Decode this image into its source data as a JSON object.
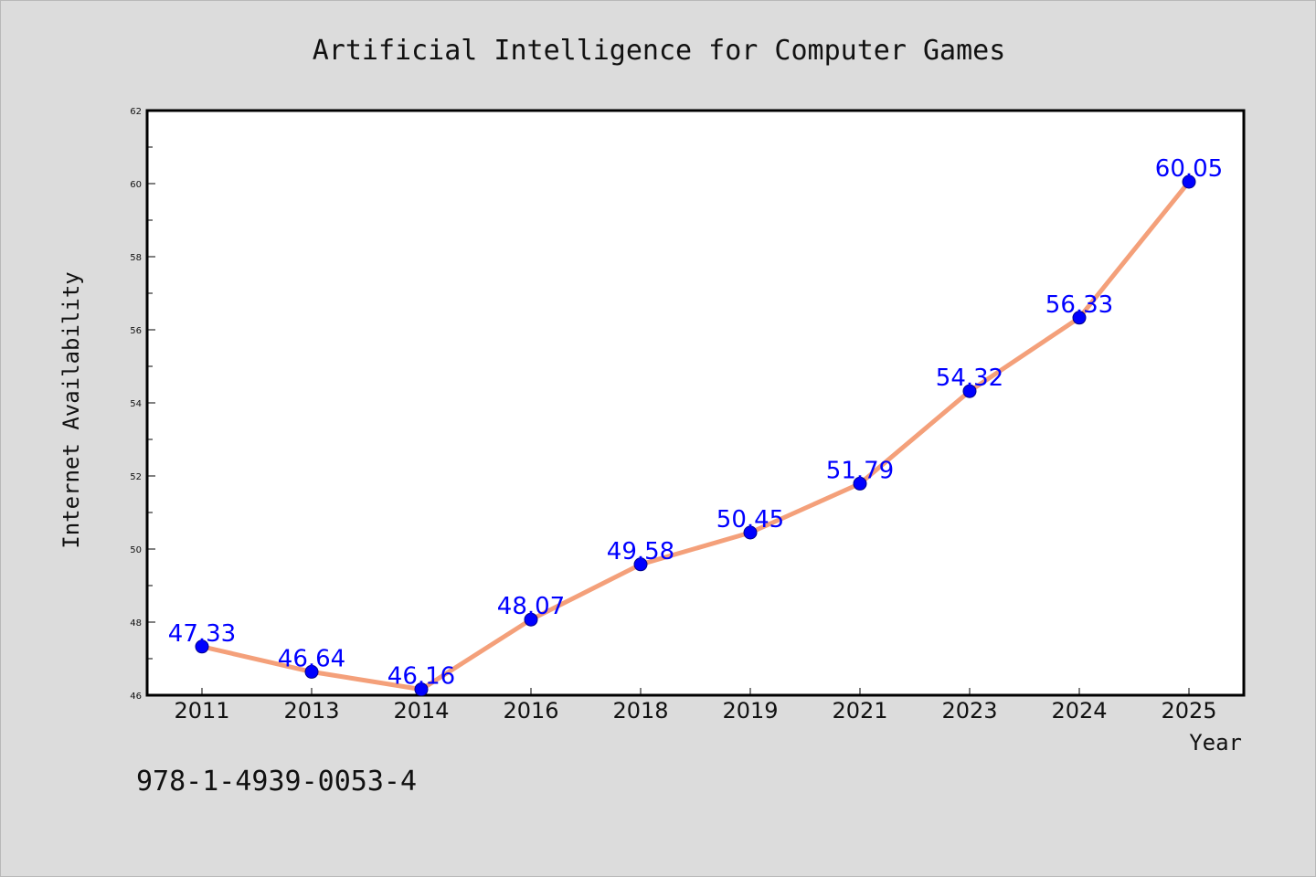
{
  "chart_data": {
    "type": "line",
    "title": "Artificial Intelligence for Computer Games",
    "xlabel": "Year",
    "ylabel": "Internet Availability",
    "categories": [
      "2011",
      "2013",
      "2014",
      "2016",
      "2018",
      "2019",
      "2021",
      "2023",
      "2024",
      "2025"
    ],
    "series": [
      {
        "values": [
          47.33,
          46.64,
          46.16,
          48.07,
          49.58,
          50.45,
          51.79,
          54.32,
          56.33,
          60.05
        ],
        "data_labels": [
          "47.33",
          "46.64",
          "46.16",
          "48.07",
          "49.58",
          "50.45",
          "51.79",
          "54.32",
          "56.33",
          "60.05"
        ],
        "line_color": "#f4a07a",
        "marker_color": "#0000ff"
      }
    ],
    "ylim": [
      46,
      62
    ],
    "yticks": [
      "46",
      "48",
      "50",
      "52",
      "54",
      "56",
      "58",
      "60",
      "62"
    ],
    "grid": false
  },
  "footer": {
    "isbn": "978-1-4939-0053-4"
  },
  "colors": {
    "background": "#dcdcdc",
    "plot_background": "#ffffff",
    "line": "#f4a07a",
    "marker": "#0000ff",
    "data_label": "#0000ff"
  }
}
